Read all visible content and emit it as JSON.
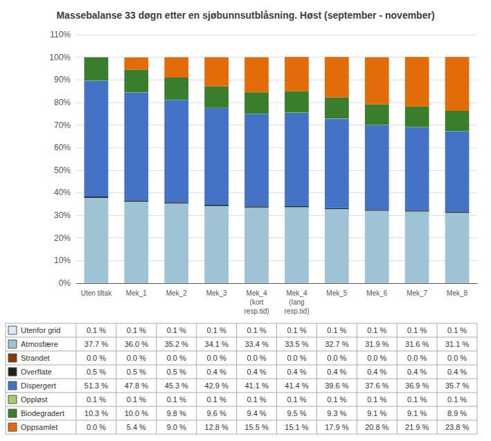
{
  "chart_data": {
    "type": "bar",
    "title": "Massebalanse 33 døgn etter en sjøbunnsutblåsning. Høst (september - november)",
    "stacked": true,
    "grid": true,
    "categories": [
      "Uten tiltak",
      "Mek_1",
      "Mek_2",
      "Mek_3",
      "Mek_4\n(kort\nresp.tid)",
      "Mek_4\n(lang\nresp.tid)",
      "Mek_5",
      "Mek_6",
      "Mek_7",
      "Mek_8"
    ],
    "series": [
      {
        "name": "Utenfor grid",
        "color": "#d9e8f5",
        "values": [
          0.1,
          0.1,
          0.1,
          0.1,
          0.1,
          0.1,
          0.1,
          0.1,
          0.1,
          0.1
        ],
        "value_labels": [
          "0.1 %",
          "0.1 %",
          "0.1 %",
          "0.1 %",
          "0.1 %",
          "0.1 %",
          "0.1 %",
          "0.1 %",
          "0.1 %",
          "0.1 %"
        ]
      },
      {
        "name": "Atmosfære",
        "color": "#9dc3d4",
        "values": [
          37.7,
          36.0,
          35.2,
          34.1,
          33.4,
          33.5,
          32.7,
          31.9,
          31.6,
          31.1
        ],
        "value_labels": [
          "37.7 %",
          "36.0 %",
          "35.2 %",
          "34.1 %",
          "33.4 %",
          "33.5 %",
          "32.7 %",
          "31.9 %",
          "31.6 %",
          "31.1 %"
        ]
      },
      {
        "name": "Strandet",
        "color": "#833c00",
        "values": [
          0.0,
          0.0,
          0.0,
          0.0,
          0.0,
          0.0,
          0.0,
          0.0,
          0.0,
          0.0
        ],
        "value_labels": [
          "0.0 %",
          "0.0 %",
          "0.0 %",
          "0.0 %",
          "0.0 %",
          "0.0 %",
          "0.0 %",
          "0.0 %",
          "0.0 %",
          "0.0 %"
        ]
      },
      {
        "name": "Overflate",
        "color": "#1f1f1f",
        "values": [
          0.5,
          0.5,
          0.5,
          0.4,
          0.4,
          0.4,
          0.4,
          0.4,
          0.4,
          0.4
        ],
        "value_labels": [
          "0.5 %",
          "0.5 %",
          "0.5 %",
          "0.4 %",
          "0.4 %",
          "0.4 %",
          "0.4 %",
          "0.4 %",
          "0.4 %",
          "0.4 %"
        ]
      },
      {
        "name": "Dispergert",
        "color": "#4472c4",
        "values": [
          51.3,
          47.8,
          45.3,
          42.9,
          41.1,
          41.4,
          39.6,
          37.6,
          36.9,
          35.7
        ],
        "value_labels": [
          "51.3 %",
          "47.8 %",
          "45.3 %",
          "42.9 %",
          "41.1 %",
          "41.4 %",
          "39.6 %",
          "37.6 %",
          "36.9 %",
          "35.7 %"
        ]
      },
      {
        "name": "Oppløst",
        "color": "#a9c96e",
        "values": [
          0.1,
          0.1,
          0.1,
          0.1,
          0.1,
          0.1,
          0.1,
          0.1,
          0.1,
          0.1
        ],
        "value_labels": [
          "0.1 %",
          "0.1 %",
          "0.1 %",
          "0.1 %",
          "0.1 %",
          "0.1 %",
          "0.1 %",
          "0.1 %",
          "0.1 %",
          "0.1 %"
        ]
      },
      {
        "name": "Biodegradert",
        "color": "#3a7d2c",
        "values": [
          10.3,
          10.0,
          9.8,
          9.6,
          9.4,
          9.5,
          9.3,
          9.1,
          9.1,
          8.9
        ],
        "value_labels": [
          "10.3 %",
          "10.0 %",
          "9.8 %",
          "9.6 %",
          "9.4 %",
          "9.5 %",
          "9.3 %",
          "9.1 %",
          "9.1 %",
          "8.9 %"
        ]
      },
      {
        "name": "Oppsamlet",
        "color": "#e36c0a",
        "values": [
          0.0,
          5.4,
          9.0,
          12.8,
          15.5,
          15.1,
          17.9,
          20.8,
          21.9,
          23.8
        ],
        "value_labels": [
          "0.0 %",
          "5.4 %",
          "9.0 %",
          "12.8 %",
          "15.5 %",
          "15.1 %",
          "17.9 %",
          "20.8 %",
          "21.9 %",
          "23.8 %"
        ]
      }
    ],
    "ylim": [
      0,
      110
    ],
    "yticks": [
      {
        "value": 0,
        "label": "0%"
      },
      {
        "value": 10,
        "label": "10%"
      },
      {
        "value": 20,
        "label": "20%"
      },
      {
        "value": 30,
        "label": "30%"
      },
      {
        "value": 40,
        "label": "40%"
      },
      {
        "value": 50,
        "label": "50%"
      },
      {
        "value": 60,
        "label": "60%"
      },
      {
        "value": 70,
        "label": "70%"
      },
      {
        "value": 80,
        "label": "80%"
      },
      {
        "value": 90,
        "label": "90%"
      },
      {
        "value": 100,
        "label": "100%"
      },
      {
        "value": 110,
        "label": "110%"
      }
    ]
  }
}
